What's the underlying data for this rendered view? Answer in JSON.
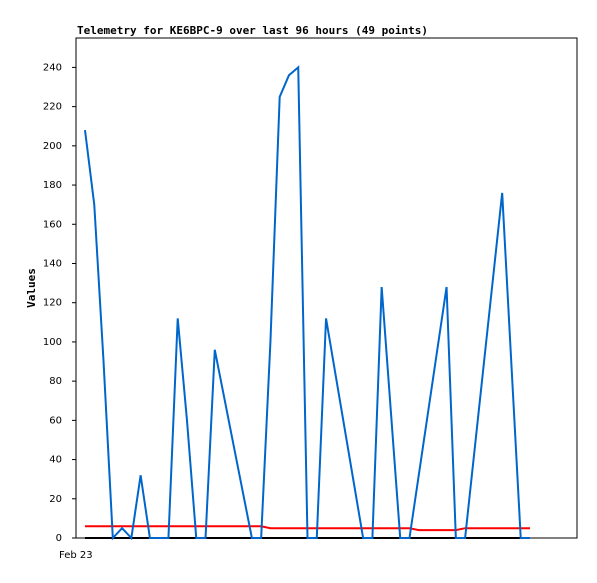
{
  "chart_data": {
    "type": "line",
    "title": "Telemetry for KE6BPC-9 over last 96 hours (49 points)",
    "y_label": "Values",
    "categories": [
      "Feb 23",
      null,
      null,
      null,
      null,
      null,
      null,
      null,
      null,
      null,
      null,
      null,
      null,
      null,
      null,
      null,
      null,
      null,
      null,
      null,
      null,
      null,
      null,
      null,
      null,
      null,
      null,
      null,
      null,
      null,
      null,
      null,
      null,
      null,
      null,
      null,
      null,
      null,
      null,
      null,
      null,
      null,
      null,
      null,
      null,
      null,
      null,
      null,
      null
    ],
    "ylim": [
      0,
      255
    ],
    "yticks": [
      0,
      20,
      40,
      60,
      80,
      100,
      120,
      140,
      160,
      180,
      200,
      220,
      240
    ],
    "grid": false,
    "series": [
      {
        "color": "#000000",
        "values": [
          0,
          0,
          0,
          0,
          0,
          0,
          0,
          0,
          0,
          0,
          0,
          0,
          0,
          0,
          0,
          0,
          0,
          0,
          0,
          0,
          0,
          0,
          0,
          0,
          0,
          0,
          0,
          0,
          0,
          0,
          0,
          0,
          0,
          0,
          0,
          0,
          0,
          0,
          0,
          0,
          0,
          0,
          0,
          0,
          0,
          0,
          0,
          0,
          0
        ]
      },
      {
        "color": "#ff0000",
        "values": [
          6,
          6,
          6,
          6,
          6,
          6,
          6,
          6,
          6,
          6,
          6,
          6,
          6,
          6,
          6,
          6,
          6,
          6,
          6,
          6,
          5,
          5,
          5,
          5,
          5,
          5,
          5,
          5,
          5,
          5,
          5,
          5,
          5,
          5,
          5,
          5,
          4,
          4,
          4,
          4,
          4,
          5,
          5,
          5,
          5,
          5,
          5,
          5,
          5
        ]
      },
      {
        "color": "#0066cc",
        "values": [
          208,
          170,
          90,
          0,
          5,
          0,
          32,
          0,
          0,
          0,
          112,
          60,
          0,
          0,
          96,
          72,
          48,
          24,
          0,
          0,
          100,
          225,
          236,
          240,
          0,
          0,
          112,
          84,
          56,
          28,
          0,
          0,
          128,
          64,
          0,
          0,
          32,
          64,
          96,
          128,
          0,
          0,
          44,
          88,
          132,
          176,
          88,
          0,
          0
        ]
      }
    ]
  }
}
